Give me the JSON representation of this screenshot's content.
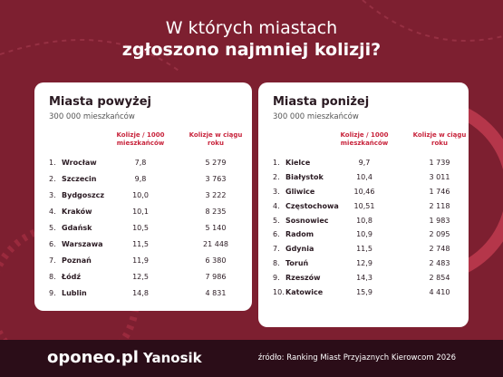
{
  "header": {
    "title_line1": "W których miastach",
    "title_line2": "zgłoszono najmniej kolizji?"
  },
  "panels": [
    {
      "title": "Miasta powyżej",
      "subtitle": "300 000 mieszkańców",
      "columns": [
        "Kolizje / 1000 mieszkańców",
        "Kolizje w ciągu roku"
      ],
      "rows": [
        [
          "1.",
          "Wrocław",
          "7,8",
          "5 279"
        ],
        [
          "2.",
          "Szczecin",
          "9,8",
          "3 763"
        ],
        [
          "3.",
          "Bydgoszcz",
          "10,0",
          "3 222"
        ],
        [
          "4.",
          "Kraków",
          "10,1",
          "8 235"
        ],
        [
          "5.",
          "Gdańsk",
          "10,5",
          "5 140"
        ],
        [
          "6.",
          "Warszawa",
          "11,5",
          "21 448"
        ],
        [
          "7.",
          "Poznań",
          "11,9",
          "6 380"
        ],
        [
          "8.",
          "Łódź",
          "12,5",
          "7 986"
        ],
        [
          "9.",
          "Lublin",
          "14,8",
          "4 831"
        ]
      ]
    },
    {
      "title": "Miasta poniżej",
      "subtitle": "300 000 mieszkańców",
      "columns": [
        "Kolizje / 1000 mieszkańców",
        "Kolizje w ciągu roku"
      ],
      "rows": [
        [
          "1.",
          "Kielce",
          "9,7",
          "1 739"
        ],
        [
          "2.",
          "Białystok",
          "10,4",
          "3 011"
        ],
        [
          "3.",
          "Gliwice",
          "10,46",
          "1 746"
        ],
        [
          "4.",
          "Częstochowa",
          "10,51",
          "2 118"
        ],
        [
          "5.",
          "Sosnowiec",
          "10,8",
          "1 983"
        ],
        [
          "6.",
          "Radom",
          "10,9",
          "2 095"
        ],
        [
          "7.",
          "Gdynia",
          "11,5",
          "2 748"
        ],
        [
          "8.",
          "Toruń",
          "12,9",
          "2 483"
        ],
        [
          "9.",
          "Rzeszów",
          "14,3",
          "2 854"
        ],
        [
          "10.",
          "Katowice",
          "15,9",
          "4 410"
        ]
      ]
    }
  ],
  "footer": {
    "brand1": "oponeo.pl",
    "brand2": "Yanosik",
    "source": "źródło: Ranking Miast Przyjaznych Kierowcom 2026"
  }
}
